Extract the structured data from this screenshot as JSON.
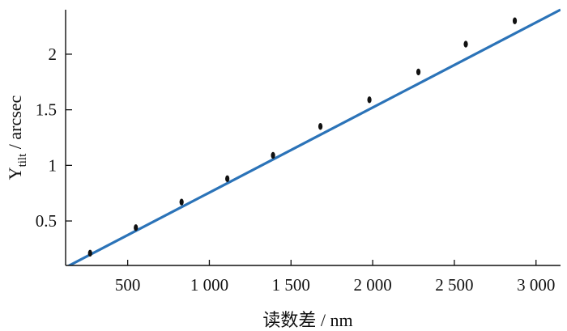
{
  "chart_data": {
    "type": "scatter",
    "title": "",
    "xlabel": "读数差 / nm",
    "ylabel_main": "Y",
    "ylabel_sub": "tilt",
    "ylabel_rest": " / arcsec",
    "xlim": [
      120,
      3150
    ],
    "ylim": [
      0.1,
      2.4
    ],
    "xticks": [
      500,
      1000,
      1500,
      2000,
      2500,
      3000
    ],
    "xtick_labels": [
      "500",
      "1 000",
      "1 500",
      "2 000",
      "2 500",
      "3 000"
    ],
    "yticks": [
      0.5,
      1,
      1.5,
      2
    ],
    "ytick_labels": [
      "0.5",
      "1",
      "1.5",
      "2"
    ],
    "grid": false,
    "series": [
      {
        "kind": "points",
        "x": [
          270,
          550,
          830,
          1110,
          1390,
          1680,
          1980,
          2280,
          2570,
          2870
        ],
        "y": [
          0.21,
          0.44,
          0.67,
          0.88,
          1.09,
          1.35,
          1.59,
          1.84,
          2.09,
          2.3
        ]
      },
      {
        "kind": "fit-line",
        "x": [
          130,
          3150
        ],
        "y": [
          0.09,
          2.4
        ]
      }
    ],
    "colors": {
      "points": "#111111",
      "line": "#2b73b8",
      "axis": "#111111"
    }
  }
}
